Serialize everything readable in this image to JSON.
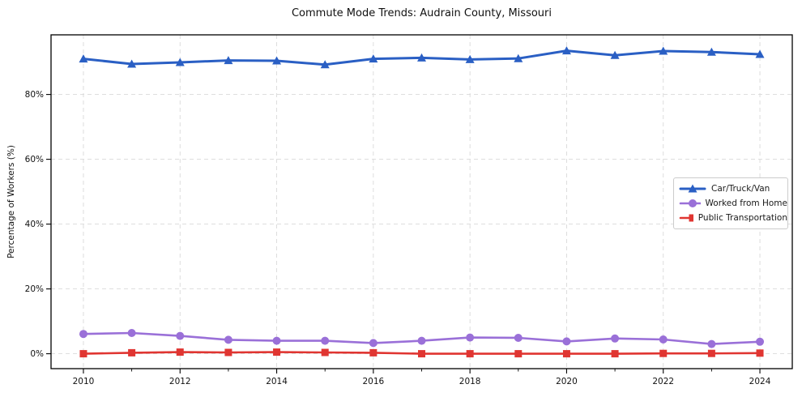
{
  "title": "Commute Mode Trends: Audrain County, Missouri",
  "colors": {
    "background": "#ffffff",
    "grid": "#d9d9d9",
    "axis": "#000000",
    "text": "#111111",
    "car_truck_van": "#2a5fc4",
    "worked_from_home": "#9a70d8",
    "public_transportation": "#e03531"
  },
  "chart_data": {
    "type": "line",
    "title": "Commute Mode Trends: Audrain County, Missouri",
    "xlabel": "",
    "ylabel": "Percentage of Workers (%)",
    "x": [
      2010,
      2011,
      2012,
      2013,
      2014,
      2015,
      2016,
      2017,
      2018,
      2019,
      2020,
      2021,
      2022,
      2023,
      2024
    ],
    "series": [
      {
        "name": "Car/Truck/Van",
        "color": "#2a5fc4",
        "marker": "triangle",
        "line_width": 3,
        "values": [
          91.0,
          89.4,
          89.9,
          90.5,
          90.4,
          89.2,
          91.0,
          91.3,
          90.8,
          91.1,
          93.5,
          92.1,
          93.4,
          93.1,
          92.4
        ]
      },
      {
        "name": "Worked from Home",
        "color": "#9a70d8",
        "marker": "circle",
        "line_width": 2.6,
        "values": [
          6.1,
          6.4,
          5.5,
          4.3,
          4.0,
          4.0,
          3.3,
          4.0,
          5.0,
          4.9,
          3.8,
          4.7,
          4.4,
          3.0,
          3.7
        ]
      },
      {
        "name": "Public Transportation",
        "color": "#e03531",
        "marker": "square",
        "line_width": 2.6,
        "values": [
          0.0,
          0.3,
          0.5,
          0.4,
          0.5,
          0.4,
          0.3,
          0.0,
          0.0,
          0.0,
          0.0,
          0.0,
          0.1,
          0.1,
          0.2
        ]
      }
    ],
    "xticks": [
      2010,
      2012,
      2014,
      2016,
      2018,
      2020,
      2022,
      2024
    ],
    "xtick_labels": [
      "2010",
      "2012",
      "2014",
      "2016",
      "2018",
      "2020",
      "2022",
      "2024"
    ],
    "x_minor_ticks": [
      2011,
      2013,
      2015,
      2017,
      2019,
      2021,
      2023
    ],
    "yticks": [
      0,
      20,
      40,
      60,
      80
    ],
    "ytick_labels": [
      "0%",
      "20%",
      "40%",
      "60%",
      "80%"
    ],
    "xlim": [
      2009.33,
      2024.67
    ],
    "ylim": [
      -4.6,
      98.4
    ],
    "grid": true,
    "legend_position": "center right"
  }
}
